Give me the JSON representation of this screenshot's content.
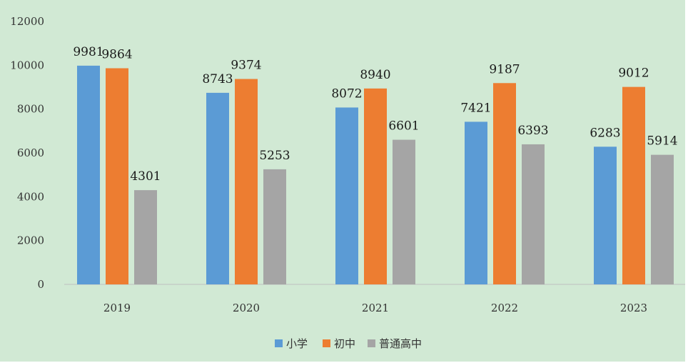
{
  "chart_data": {
    "type": "bar",
    "title": "",
    "xlabel": "",
    "ylabel": "",
    "categories": [
      "2019",
      "2020",
      "2021",
      "2022",
      "2023"
    ],
    "series": [
      {
        "name": "小学",
        "color": "#5b9bd5",
        "values": [
          9981,
          8743,
          8072,
          7421,
          6283
        ]
      },
      {
        "name": "初中",
        "color": "#ed7d31",
        "values": [
          9864,
          9374,
          8940,
          9187,
          9012
        ]
      },
      {
        "name": "普通高中",
        "color": "#a5a5a5",
        "values": [
          4301,
          5253,
          6601,
          6393,
          5914
        ]
      }
    ],
    "ylim": [
      0,
      12000
    ],
    "yticks": [
      0,
      2000,
      4000,
      6000,
      8000,
      10000,
      12000
    ],
    "grid": false,
    "data_labels": true,
    "legend_position": "bottom"
  }
}
